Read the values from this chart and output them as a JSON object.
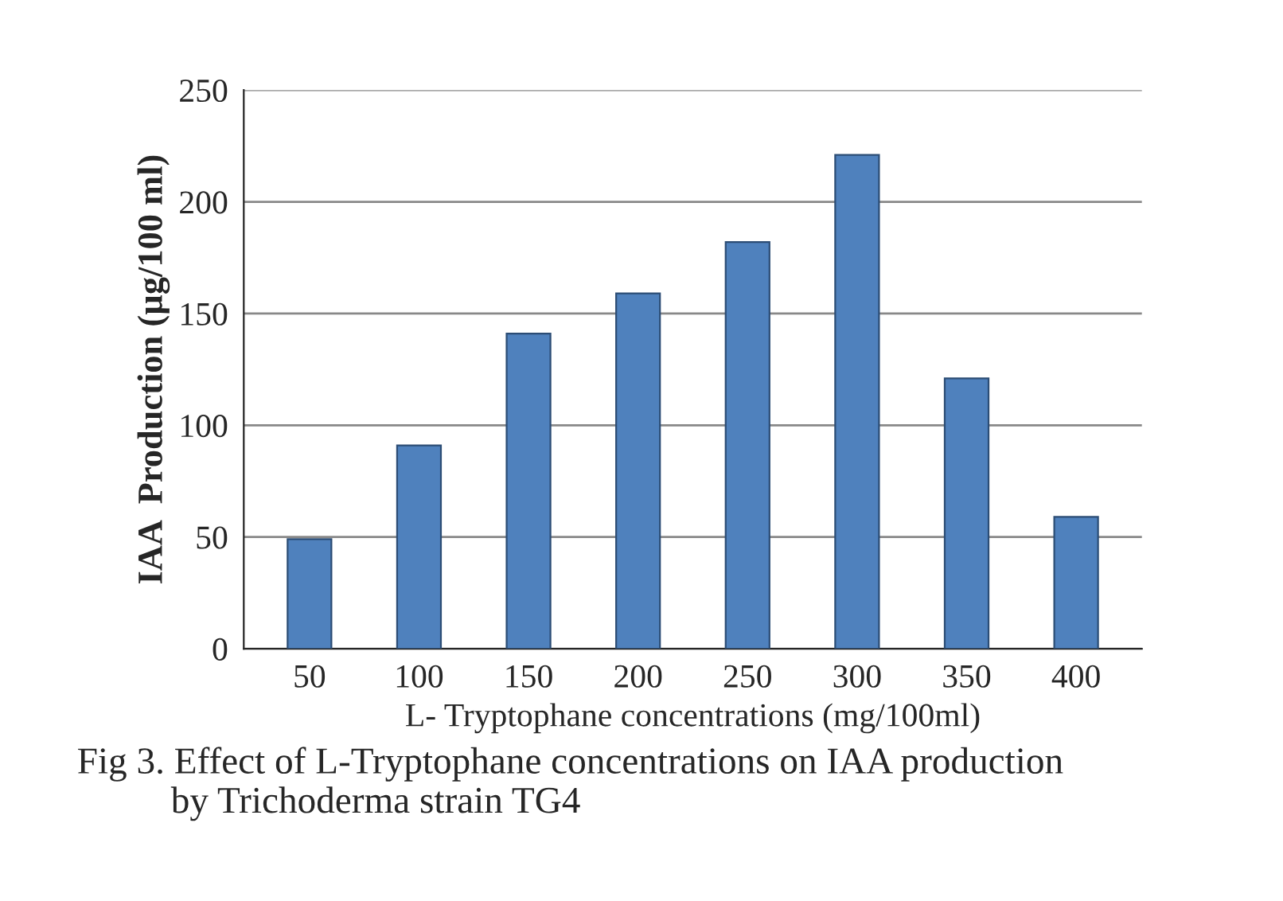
{
  "chart_data": {
    "type": "bar",
    "xlabel": "L- Tryptophane concentrations (mg/100ml)",
    "ylabel": "IAA  Production (µg/100 ml)",
    "categories": [
      "50",
      "100",
      "150",
      "200",
      "250",
      "300",
      "350",
      "400"
    ],
    "values": [
      49,
      91,
      141,
      159,
      182,
      221,
      121,
      59
    ],
    "color": "#4f81bd",
    "ylim": [
      0,
      250
    ],
    "yticks": [
      0,
      50,
      100,
      150,
      200,
      250
    ],
    "grid": "y",
    "annotations": [
      "Fig 3. Effect of L-Tryptophane concentrations on IAA production\n          by Trichoderma strain TG4"
    ]
  }
}
